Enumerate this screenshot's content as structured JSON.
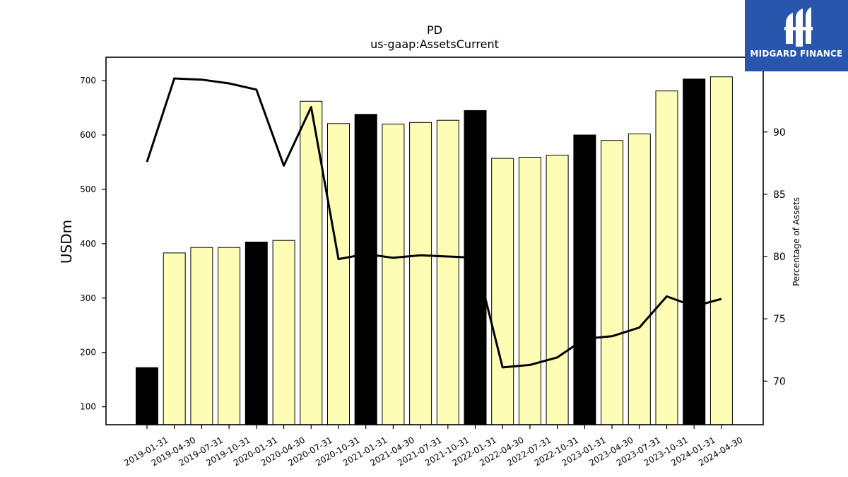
{
  "chart_data": {
    "type": "bar",
    "title": "PD",
    "subtitle": "us-gaap:AssetsCurrent",
    "ylabel": "USDm",
    "y2label": "Percentage of Assets",
    "ylim": [
      67,
      743
    ],
    "y2lim": [
      66.5,
      96.0
    ],
    "yticks": [
      100,
      200,
      300,
      400,
      500,
      600,
      700
    ],
    "y2ticks": [
      70,
      75,
      80,
      85,
      90
    ],
    "categories": [
      "2019-01-31",
      "2019-04-30",
      "2019-07-31",
      "2019-10-31",
      "2020-01-31",
      "2020-04-30",
      "2020-07-31",
      "2020-10-31",
      "2021-01-31",
      "2021-04-30",
      "2021-07-31",
      "2021-10-31",
      "2022-01-31",
      "2022-04-30",
      "2022-07-31",
      "2022-10-31",
      "2023-01-31",
      "2023-04-30",
      "2023-07-31",
      "2023-10-31",
      "2024-01-31",
      "2024-04-30"
    ],
    "series": [
      {
        "values": [
          172,
          383,
          393,
          393,
          403,
          406,
          662,
          621,
          638,
          620,
          623,
          627,
          645,
          557,
          559,
          563,
          600,
          590,
          602,
          681,
          703,
          707
        ],
        "highlight": [
          true,
          false,
          false,
          false,
          true,
          false,
          false,
          false,
          true,
          false,
          false,
          false,
          true,
          false,
          false,
          false,
          true,
          false,
          false,
          false,
          true,
          false
        ],
        "colors": {
          "normal": "#fdfdb5",
          "highlight": "#000000",
          "edge": "#000000"
        }
      },
      {
        "type": "line",
        "axis": "right",
        "color": "#000000",
        "values": [
          87.6,
          94.3,
          94.2,
          93.9,
          93.4,
          87.3,
          92.0,
          79.8,
          80.2,
          79.9,
          80.1,
          80.0,
          79.9,
          71.1,
          71.3,
          71.9,
          73.4,
          73.6,
          74.3,
          76.8,
          76.0,
          76.6
        ]
      }
    ],
    "grid": false,
    "legend": "none"
  },
  "brand": {
    "name": "MIDGARD FINANCE",
    "background": "#2756ac",
    "foreground": "#ffffff"
  }
}
